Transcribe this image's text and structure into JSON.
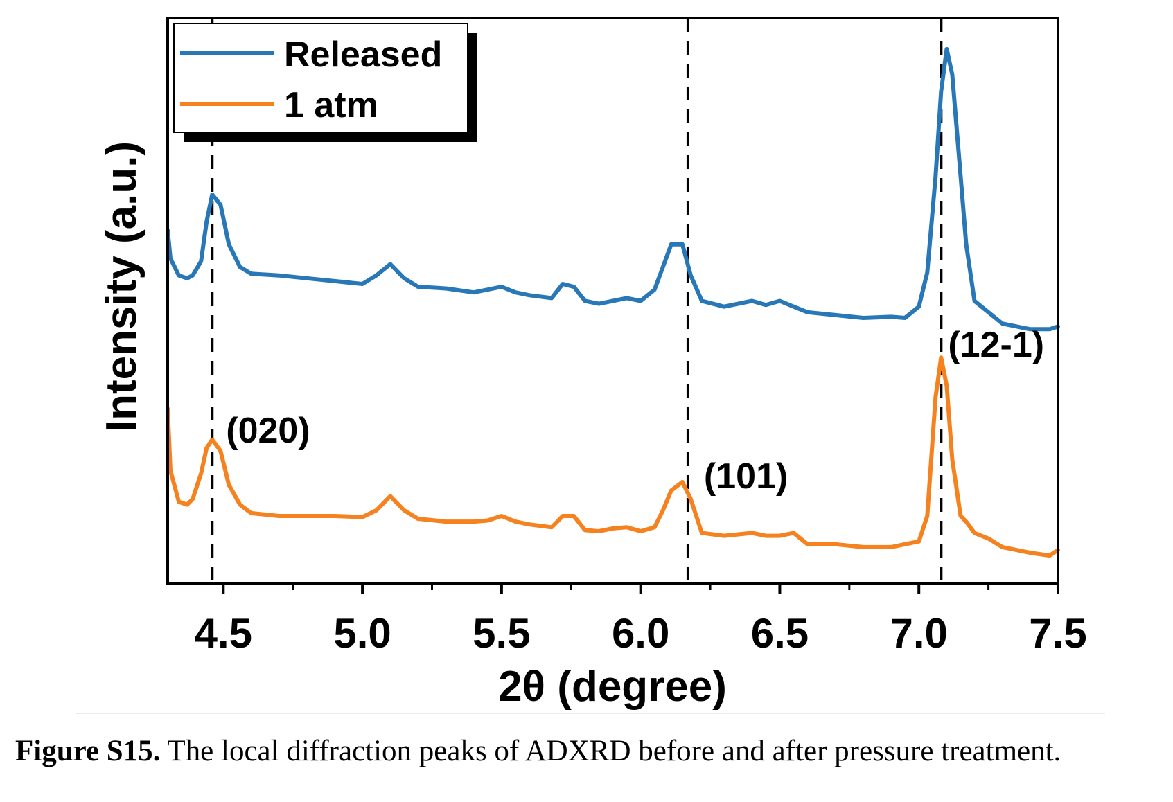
{
  "chart_data": {
    "type": "line",
    "xlabel": "2θ (degree)",
    "ylabel": "Intensity (a.u.)",
    "xlim": [
      4.3,
      7.5
    ],
    "xticks": [
      4.5,
      5.0,
      5.5,
      6.0,
      6.5,
      7.0,
      7.5
    ],
    "xtick_labels": [
      "4.5",
      "5.0",
      "5.5",
      "6.0",
      "6.5",
      "7.0",
      "7.5"
    ],
    "y_tick_labels_shown": false,
    "ylim": [
      0,
      1
    ],
    "grid": false,
    "legend_position": "top-left",
    "series": [
      {
        "name": "Released",
        "color": "#2878b8",
        "x": [
          4.3,
          4.31,
          4.34,
          4.37,
          4.39,
          4.42,
          4.44,
          4.46,
          4.49,
          4.52,
          4.56,
          4.6,
          4.7,
          4.8,
          4.9,
          5.0,
          5.05,
          5.1,
          5.15,
          5.2,
          5.3,
          5.4,
          5.45,
          5.5,
          5.55,
          5.6,
          5.68,
          5.72,
          5.76,
          5.8,
          5.85,
          5.9,
          5.95,
          6.0,
          6.05,
          6.08,
          6.11,
          6.15,
          6.18,
          6.22,
          6.3,
          6.4,
          6.45,
          6.5,
          6.55,
          6.6,
          6.7,
          6.8,
          6.9,
          6.95,
          7.0,
          7.03,
          7.06,
          7.08,
          7.1,
          7.12,
          7.15,
          7.17,
          7.2,
          7.25,
          7.3,
          7.4,
          7.47,
          7.5
        ],
        "y": [
          0.625,
          0.575,
          0.545,
          0.54,
          0.545,
          0.57,
          0.64,
          0.688,
          0.67,
          0.6,
          0.56,
          0.548,
          0.545,
          0.54,
          0.535,
          0.53,
          0.545,
          0.565,
          0.54,
          0.525,
          0.522,
          0.515,
          0.52,
          0.525,
          0.515,
          0.51,
          0.505,
          0.53,
          0.525,
          0.5,
          0.495,
          0.5,
          0.505,
          0.5,
          0.52,
          0.56,
          0.6,
          0.6,
          0.545,
          0.5,
          0.49,
          0.5,
          0.493,
          0.5,
          0.49,
          0.48,
          0.475,
          0.47,
          0.472,
          0.47,
          0.49,
          0.55,
          0.72,
          0.87,
          0.945,
          0.9,
          0.72,
          0.6,
          0.5,
          0.48,
          0.46,
          0.45,
          0.45,
          0.455
        ]
      },
      {
        "name": "1 atm",
        "color": "#f5821f",
        "x": [
          4.3,
          4.31,
          4.34,
          4.37,
          4.39,
          4.42,
          4.44,
          4.46,
          4.49,
          4.52,
          4.56,
          4.6,
          4.7,
          4.8,
          4.9,
          5.0,
          5.05,
          5.1,
          5.15,
          5.2,
          5.3,
          5.4,
          5.45,
          5.5,
          5.55,
          5.6,
          5.68,
          5.72,
          5.76,
          5.8,
          5.85,
          5.9,
          5.95,
          6.0,
          6.05,
          6.08,
          6.11,
          6.15,
          6.18,
          6.22,
          6.3,
          6.4,
          6.45,
          6.5,
          6.55,
          6.6,
          6.7,
          6.8,
          6.9,
          6.95,
          7.0,
          7.03,
          7.06,
          7.08,
          7.1,
          7.12,
          7.15,
          7.17,
          7.2,
          7.25,
          7.3,
          7.4,
          7.47,
          7.5
        ],
        "y": [
          0.31,
          0.2,
          0.145,
          0.14,
          0.15,
          0.195,
          0.24,
          0.255,
          0.235,
          0.175,
          0.14,
          0.125,
          0.12,
          0.12,
          0.12,
          0.118,
          0.13,
          0.155,
          0.13,
          0.115,
          0.11,
          0.11,
          0.112,
          0.12,
          0.11,
          0.105,
          0.1,
          0.12,
          0.12,
          0.095,
          0.093,
          0.098,
          0.1,
          0.093,
          0.1,
          0.13,
          0.165,
          0.18,
          0.15,
          0.09,
          0.085,
          0.09,
          0.085,
          0.085,
          0.09,
          0.07,
          0.07,
          0.065,
          0.065,
          0.07,
          0.075,
          0.12,
          0.33,
          0.4,
          0.35,
          0.22,
          0.12,
          0.11,
          0.09,
          0.08,
          0.065,
          0.055,
          0.05,
          0.06
        ]
      }
    ],
    "reference_lines": [
      4.46,
      6.17,
      7.08
    ],
    "annotations": [
      {
        "text": "(020)",
        "x": 4.46
      },
      {
        "text": "(101)",
        "x": 6.17
      },
      {
        "text": "(12-1)",
        "x": 7.08
      }
    ]
  },
  "caption": {
    "label": "Figure S15.",
    "text": " The local diffraction peaks of ADXRD before and after pressure treatment."
  }
}
